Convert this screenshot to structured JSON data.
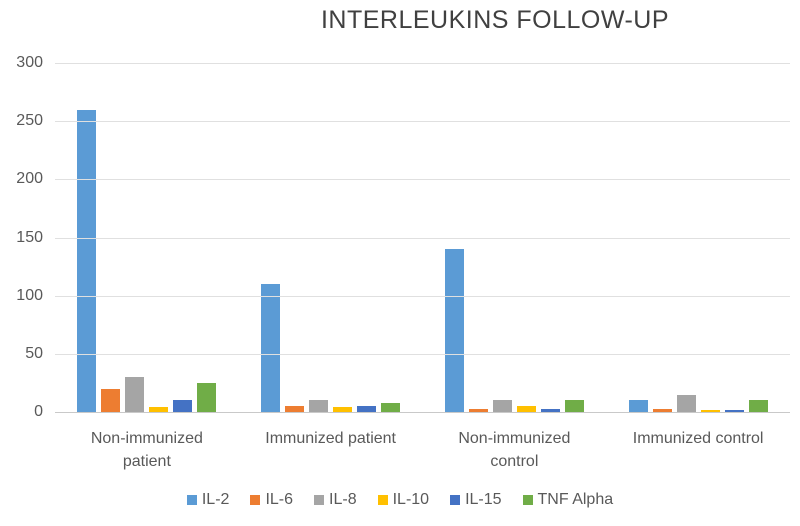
{
  "chart_data": {
    "type": "bar",
    "title": "INTERLEUKINS FOLLOW-UP",
    "categories": [
      "Non-immunized patient",
      "Immunized patient",
      "Non-immunized control",
      "Immunized control"
    ],
    "series": [
      {
        "name": "IL-2",
        "color": "#5B9BD5",
        "values": [
          260,
          110,
          140,
          10
        ]
      },
      {
        "name": "IL-6",
        "color": "#ED7D31",
        "values": [
          20,
          5,
          3,
          3
        ]
      },
      {
        "name": "IL-8",
        "color": "#A5A5A5",
        "values": [
          30,
          10,
          10,
          15
        ]
      },
      {
        "name": "IL-10",
        "color": "#FFC000",
        "values": [
          4,
          4,
          5,
          2
        ]
      },
      {
        "name": "IL-15",
        "color": "#4472C4",
        "values": [
          10,
          5,
          3,
          2
        ]
      },
      {
        "name": "TNF Alpha",
        "color": "#70AD47",
        "values": [
          25,
          8,
          10,
          10
        ]
      }
    ],
    "ylim": [
      0,
      300
    ],
    "yticks": [
      0,
      50,
      100,
      150,
      200,
      250,
      300
    ],
    "xlabel": "",
    "ylabel": "",
    "grid": true,
    "legend_position": "bottom",
    "colors_meta": {
      "title_text": "#404040",
      "axis_text": "#595959",
      "gridline": "#E0E0E0",
      "axis_line": "#C9C9C9",
      "background": "#FFFFFF"
    }
  }
}
